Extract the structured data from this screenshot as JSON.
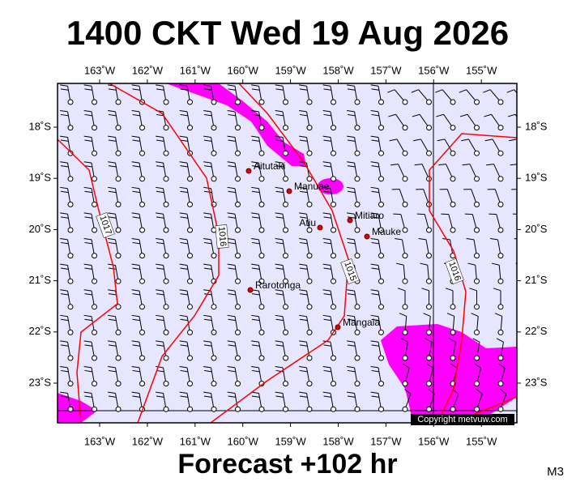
{
  "header": {
    "title": "1400 CKT Wed 19 Aug 2026"
  },
  "footer": {
    "forecast": "Forecast +102 hr",
    "code": "M3"
  },
  "copyright": "Copyright metvuw.com",
  "longitude_labels": [
    "163˚W",
    "162˚W",
    "161˚W",
    "160˚W",
    "159˚W",
    "158˚W",
    "157˚W",
    "156˚W",
    "155˚W"
  ],
  "latitude_labels": [
    "18˚S",
    "19˚S",
    "20˚S",
    "21˚S",
    "22˚S",
    "23˚S"
  ],
  "places": [
    {
      "name": "Aitutaki"
    },
    {
      "name": "Manuae"
    },
    {
      "name": "Mitiaro"
    },
    {
      "name": "Atiu"
    },
    {
      "name": "Mauke"
    },
    {
      "name": "Rarotonga"
    },
    {
      "name": "Mangaia"
    }
  ],
  "isobars": [
    {
      "label": "1017"
    },
    {
      "label": "1016"
    },
    {
      "label": "1015"
    },
    {
      "label": "1016"
    }
  ]
}
